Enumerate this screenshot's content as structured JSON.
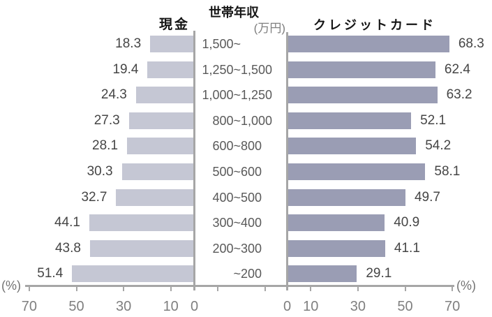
{
  "chart_data": {
    "type": "bar",
    "variant": "bidirectional-pyramid",
    "center_axis_title": "世帯年収",
    "center_axis_unit": "(万円)",
    "categories": [
      "1,500~",
      "1,250~1,500",
      "1,000~1,250",
      "800~1,000",
      "600~ 800",
      "500~ 600",
      "400~ 500",
      "300~ 400",
      "200~ 300",
      "~ 200"
    ],
    "series": [
      {
        "name": "現金",
        "side": "left",
        "color": "#C5C7D4",
        "values": [
          18.3,
          19.4,
          24.3,
          27.3,
          28.1,
          30.3,
          32.7,
          44.1,
          43.8,
          51.4
        ]
      },
      {
        "name": "クレジットカード",
        "side": "right",
        "color": "#9A9DB4",
        "values": [
          68.3,
          62.4,
          63.2,
          52.1,
          54.2,
          58.1,
          49.7,
          40.9,
          41.1,
          29.1
        ]
      }
    ],
    "xlim": [
      0,
      70
    ],
    "left_axis_tick_labels": [
      "70",
      "50",
      "30",
      "10",
      "0"
    ],
    "right_axis_tick_labels": [
      "0",
      "10",
      "30",
      "50",
      "70"
    ],
    "axis_unit_label": "(%)",
    "axis_color": "#A6A6A6",
    "value_label_color": "#454545",
    "category_label_color": "#595959",
    "grid": false,
    "legend_position": "top-as-titles"
  }
}
